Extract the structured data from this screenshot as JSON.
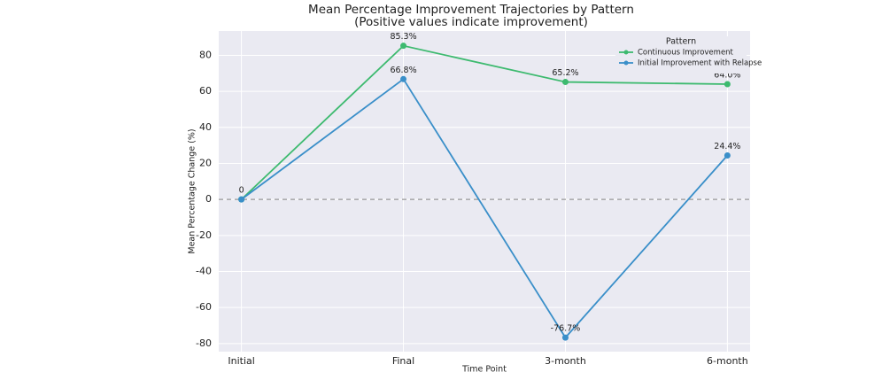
{
  "chart_data": {
    "type": "line",
    "title": "Mean Percentage Improvement Trajectories by Pattern",
    "subtitle": "(Positive values indicate improvement)",
    "x_label": "Time Point",
    "y_label": "Mean Percentage Change (%)",
    "categories": [
      "Initial",
      "Final",
      "3-month",
      "6-month"
    ],
    "series": [
      {
        "name": "Continuous Improvement",
        "color": "#3dba6f",
        "values": [
          0,
          85.3,
          65.2,
          64.0
        ],
        "value_labels": [
          null,
          "85.3%",
          "65.2%",
          "64.0%"
        ]
      },
      {
        "name": "Initial Improvement with Relapse",
        "color": "#3a8fc9",
        "values": [
          0,
          66.8,
          -76.7,
          24.4
        ],
        "value_labels": [
          "0",
          "66.8%",
          "-76.7%",
          "24.4%"
        ]
      }
    ],
    "ylim": [
      -84.5,
      93.5
    ],
    "yticks": [
      -80,
      -60,
      -40,
      -20,
      0,
      20,
      40,
      60,
      80
    ],
    "hline": 0,
    "grid": true,
    "legend_title": "Pattern",
    "legend_position": "upper right"
  }
}
